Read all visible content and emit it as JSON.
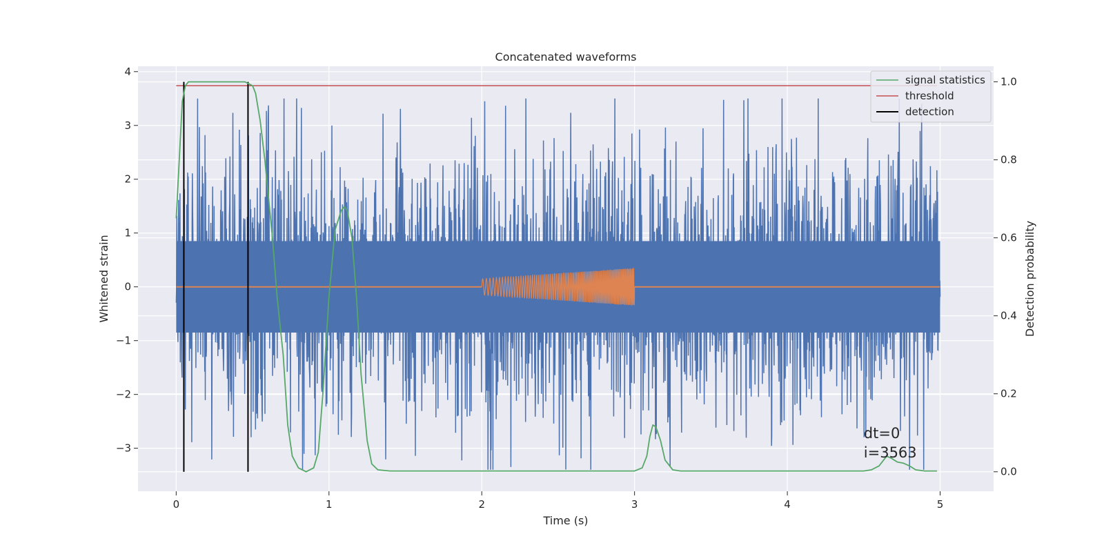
{
  "chart_data": {
    "type": "line",
    "title": "Concatenated waveforms",
    "xlabel": "Time (s)",
    "ylabel": "Whitened strain",
    "y2label": "Detection probability",
    "xlim": [
      -0.25,
      5.35
    ],
    "ylim": [
      -3.8,
      4.1
    ],
    "y2lim": [
      -0.05,
      1.04
    ],
    "xticks": [
      0,
      1,
      2,
      3,
      4,
      5
    ],
    "yticks": [
      -3,
      -2,
      -1,
      0,
      1,
      2,
      3,
      4
    ],
    "y2ticks": [
      0.0,
      0.2,
      0.4,
      0.6,
      0.8,
      1.0
    ],
    "xtick_labels": [
      "0",
      "1",
      "2",
      "3",
      "4",
      "5"
    ],
    "ytick_labels": [
      "−3",
      "−2",
      "−1",
      "0",
      "1",
      "2",
      "3",
      "4"
    ],
    "y2tick_labels": [
      "0.0",
      "0.2",
      "0.4",
      "0.6",
      "0.8",
      "1.0"
    ],
    "grid": true,
    "legend_position": "top-right",
    "colors": {
      "background": "#eaeaf2",
      "grid": "#ffffff",
      "strain": "#4c72b0",
      "template": "#dd8452",
      "signal_statistics": "#55a868",
      "threshold": "#c44e52",
      "detection": "#000000"
    },
    "series": [
      {
        "name": "signal statistics",
        "axis": "right",
        "x": [
          0.0,
          0.02,
          0.04,
          0.06,
          0.08,
          0.1,
          0.2,
          0.3,
          0.4,
          0.45,
          0.5,
          0.52,
          0.55,
          0.58,
          0.6,
          0.63,
          0.66,
          0.7,
          0.73,
          0.76,
          0.8,
          0.85,
          0.9,
          0.93,
          0.96,
          1.0,
          1.04,
          1.08,
          1.1,
          1.12,
          1.15,
          1.18,
          1.21,
          1.25,
          1.28,
          1.32,
          1.4,
          1.6,
          2.0,
          2.5,
          3.0,
          3.05,
          3.08,
          3.1,
          3.12,
          3.14,
          3.17,
          3.2,
          3.25,
          3.3,
          3.5,
          4.0,
          4.5,
          4.55,
          4.6,
          4.63,
          4.65,
          4.68,
          4.72,
          4.76,
          4.8,
          4.84,
          4.9,
          4.98
        ],
        "y": [
          0.65,
          0.8,
          0.95,
          0.99,
          1.0,
          1.0,
          1.0,
          1.0,
          1.0,
          1.0,
          0.99,
          0.97,
          0.9,
          0.8,
          0.72,
          0.6,
          0.45,
          0.3,
          0.12,
          0.04,
          0.01,
          0.0,
          0.01,
          0.05,
          0.2,
          0.45,
          0.62,
          0.67,
          0.68,
          0.67,
          0.6,
          0.45,
          0.25,
          0.08,
          0.02,
          0.005,
          0.002,
          0.002,
          0.002,
          0.002,
          0.002,
          0.01,
          0.04,
          0.09,
          0.12,
          0.115,
          0.08,
          0.03,
          0.005,
          0.002,
          0.002,
          0.002,
          0.002,
          0.005,
          0.015,
          0.03,
          0.04,
          0.035,
          0.025,
          0.022,
          0.015,
          0.005,
          0.002,
          0.002
        ]
      },
      {
        "name": "threshold",
        "axis": "right",
        "x": [
          0.0,
          4.98
        ],
        "y": [
          0.99,
          0.99
        ]
      },
      {
        "name": "detection",
        "axis": "right",
        "segments": [
          [
            0.05,
            0.0,
            0.05,
            1.0
          ],
          [
            0.47,
            0.0,
            0.47,
            1.0
          ]
        ]
      }
    ],
    "noise_series": {
      "axis": "left",
      "x_range": [
        0.0,
        5.0
      ],
      "band": 0.85,
      "spike_max": 3.5,
      "spike_min": -3.4
    },
    "template_series": {
      "axis": "left",
      "x_range": [
        0.0,
        5.0
      ],
      "chirp_range": [
        2.0,
        3.0
      ],
      "amplitude_start": 0.15,
      "amplitude_end": 0.35
    },
    "annotations": [
      {
        "lines": [
          "dt=0",
          "i=3563"
        ],
        "x": 4.5,
        "y": 0.1
      }
    ]
  }
}
